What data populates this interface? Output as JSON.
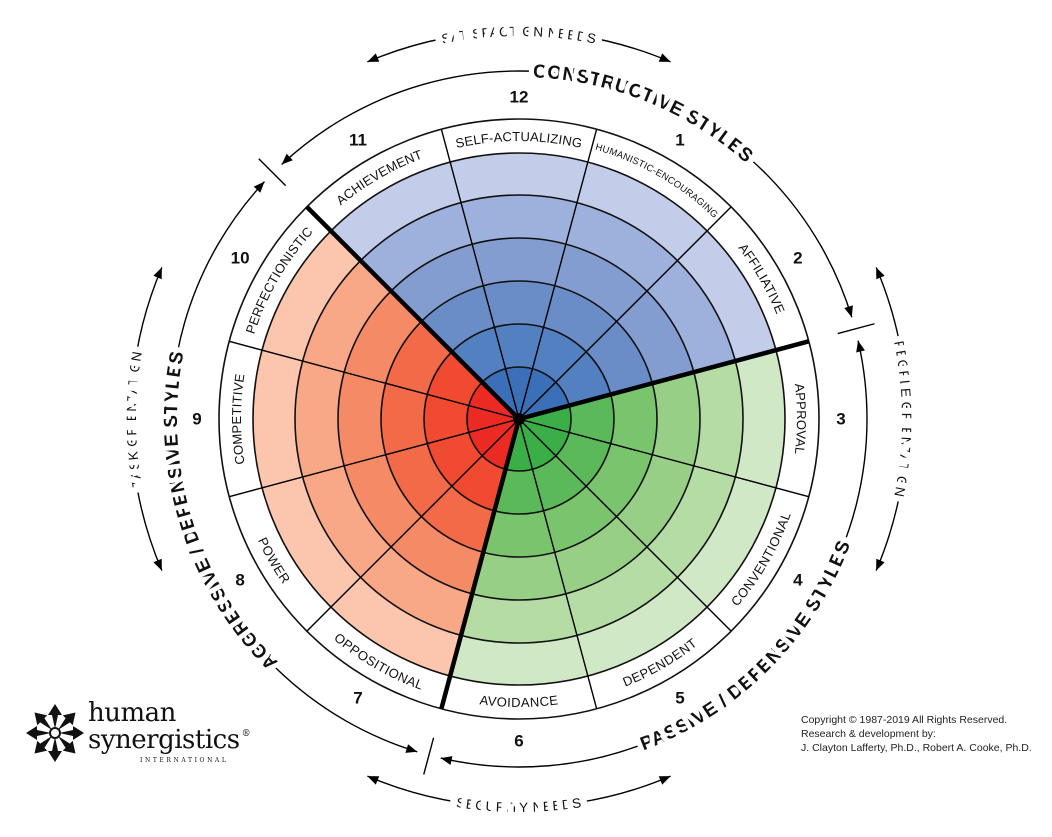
{
  "group_titles": {
    "constructive": "CONSTRUCTIVE STYLES",
    "aggressive": "AGGRESSIVE / DEFENSIVE STYLES",
    "passive": "PASSIVE / DEFENSIVE STYLES"
  },
  "needs": {
    "satisfaction": "SATISFACTION NEEDS",
    "people": "PEOPLE ORIENTATION",
    "security": "SECURITY NEEDS",
    "task": "TASK ORIENTATION"
  },
  "segments": [
    {
      "number": "1",
      "label": "HUMANISTIC-ENCOURAGING",
      "group": "constructive"
    },
    {
      "number": "2",
      "label": "AFFILIATIVE",
      "group": "constructive"
    },
    {
      "number": "3",
      "label": "APPROVAL",
      "group": "passive"
    },
    {
      "number": "4",
      "label": "CONVENTIONAL",
      "group": "passive"
    },
    {
      "number": "5",
      "label": "DEPENDENT",
      "group": "passive"
    },
    {
      "number": "6",
      "label": "AVOIDANCE",
      "group": "passive"
    },
    {
      "number": "7",
      "label": "OPPOSITIONAL",
      "group": "aggressive"
    },
    {
      "number": "8",
      "label": "POWER",
      "group": "aggressive"
    },
    {
      "number": "9",
      "label": "COMPETITIVE",
      "group": "aggressive"
    },
    {
      "number": "10",
      "label": "PERFECTIONISTIC",
      "group": "aggressive"
    },
    {
      "number": "11",
      "label": "ACHIEVEMENT",
      "group": "constructive"
    },
    {
      "number": "12",
      "label": "SELF-ACTUALIZING",
      "group": "constructive"
    }
  ],
  "colors": {
    "constructive": [
      "#3b6fb8",
      "#5280c1",
      "#6a8dc8",
      "#839dd1",
      "#9db1dc",
      "#c3cde9"
    ],
    "aggressive": [
      "#ec2a24",
      "#f04a31",
      "#f26a48",
      "#f58a66",
      "#f8a787",
      "#fbc6ad"
    ],
    "passive": [
      "#3cae48",
      "#5cb95a",
      "#7ac46d",
      "#98cf86",
      "#b5dca5",
      "#d1e8c6"
    ]
  },
  "logo": {
    "line1": "human",
    "line2": "synergistics",
    "registered": "®",
    "line3": "INTERNATIONAL"
  },
  "copyright": {
    "line1": "Copyright © 1987-2019  All Rights Reserved.",
    "line2": "Research & development by:",
    "line3": "J. Clayton Lafferty, Ph.D., Robert A. Cooke, Ph.D."
  }
}
